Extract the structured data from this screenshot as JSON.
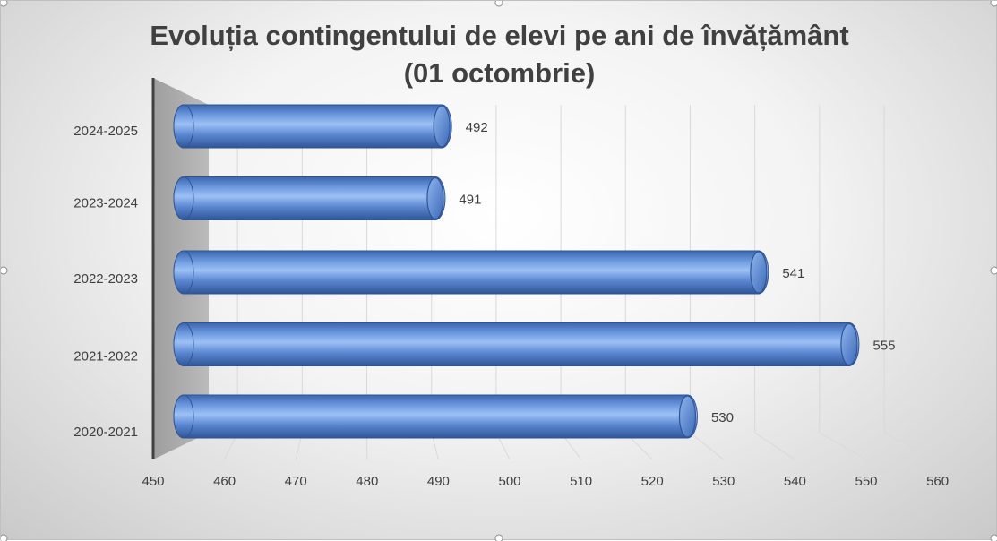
{
  "chart_data": {
    "type": "bar",
    "orientation": "horizontal",
    "style": "3d-cylinder",
    "title_lines": [
      "Evoluția contingentului de elevi pe ani de învățământ",
      "(01 octombrie)"
    ],
    "categories": [
      "2020-2021",
      "2021-2022",
      "2022-2023",
      "2023-2024",
      "2024-2025"
    ],
    "series": [
      {
        "values": [
          530,
          555,
          541,
          491,
          492
        ]
      }
    ],
    "xlim": [
      450,
      560
    ],
    "xticks": [
      450,
      460,
      470,
      480,
      490,
      500,
      510,
      520,
      530,
      540,
      550,
      560
    ],
    "grid": true,
    "legend": "none",
    "colors": {
      "bar": "#4472c4",
      "bar_light": "#8db4f0",
      "bar_dark": "#2f5597",
      "wall": "#a6a6a6"
    }
  }
}
